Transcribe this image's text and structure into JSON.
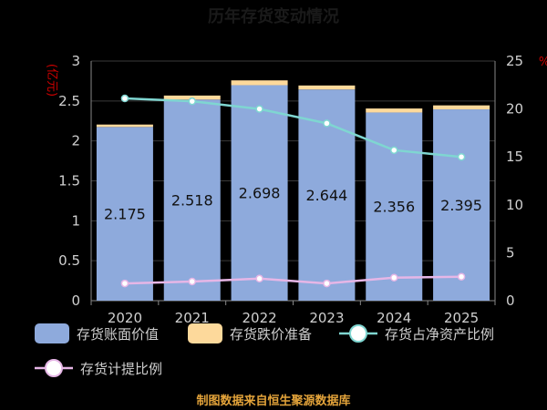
{
  "chart_data": {
    "type": "bar",
    "title": "历年存货变动情况",
    "ylabel_left": "(亿元)",
    "ylabel_right": "%",
    "categories": [
      "2020",
      "2021",
      "2022",
      "2023",
      "2024",
      "2025"
    ],
    "ylim_left": [
      0,
      3
    ],
    "ylim_right": [
      0,
      25
    ],
    "yticks_left": [
      "0",
      "0.5",
      "1",
      "1.5",
      "2",
      "2.5",
      "3"
    ],
    "yticks_right": [
      "0",
      "5",
      "10",
      "15",
      "20",
      "25"
    ],
    "series": [
      {
        "name": "存货账面价值",
        "kind": "bar",
        "axis": "left",
        "values": [
          2.175,
          2.518,
          2.698,
          2.644,
          2.356,
          2.395
        ],
        "labels": [
          "2.175",
          "2.518",
          "2.698",
          "2.644",
          "2.356",
          "2.395"
        ],
        "color": "#8eaadc"
      },
      {
        "name": "存货跌价准备",
        "kind": "bar-stacked",
        "axis": "left",
        "values": [
          0.03,
          0.05,
          0.06,
          0.05,
          0.05,
          0.05
        ],
        "color": "#fdd99b"
      },
      {
        "name": "存货占净资产比例",
        "kind": "line",
        "axis": "right",
        "values": [
          21.1,
          20.8,
          20.0,
          18.5,
          15.7,
          15.0
        ],
        "color": "#7fd6d1"
      },
      {
        "name": "存货计提比例",
        "kind": "line",
        "axis": "right",
        "values": [
          1.8,
          2.0,
          2.3,
          1.8,
          2.4,
          2.5
        ],
        "color": "#e6b6e6"
      }
    ],
    "grid": true,
    "legend_position": "bottom"
  },
  "footer": {
    "source": "制图数据来自恒生聚源数据库"
  },
  "colors": {
    "background": "#000000",
    "title": "#1a1a1a",
    "axis_label": "#cc0000",
    "footer": "#e3a33a"
  }
}
